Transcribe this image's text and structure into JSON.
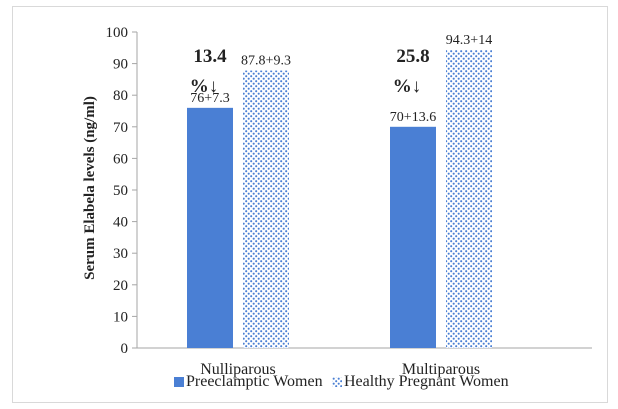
{
  "colors": {
    "preeclamptic": "#4a7fd4",
    "healthy_dots": "#4a7fd4",
    "axis": "#a6a6a6"
  },
  "chart_data": {
    "type": "bar",
    "categories": [
      "Nulliparous",
      "Multiparous"
    ],
    "series": [
      {
        "name": "Preeclamptic Women",
        "values": [
          76,
          70
        ],
        "labels": [
          "76+7.3",
          "70+13.6"
        ],
        "fill": "solid"
      },
      {
        "name": "Healthy Pregnant Women",
        "values": [
          87.8,
          94.3
        ],
        "labels": [
          "87.8+9.3",
          "94.3+14"
        ],
        "fill": "dotted"
      }
    ],
    "annotations": [
      {
        "category": "Nulliparous",
        "line1": "13.4",
        "line2": "%↓"
      },
      {
        "category": "Multiparous",
        "line1": "25.8",
        "line2": "%↓"
      }
    ],
    "ylabel": "Serum Elabela levels (ng/ml)",
    "ylim": [
      0,
      100
    ],
    "yticks": [
      0,
      10,
      20,
      30,
      40,
      50,
      60,
      70,
      80,
      90,
      100
    ],
    "grid": false,
    "legend": "bottom"
  }
}
